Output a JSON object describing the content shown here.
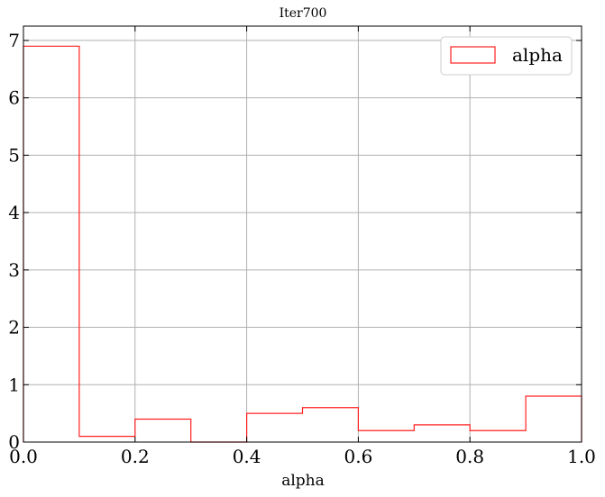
{
  "chart_data": {
    "type": "histogram",
    "title": "Iter700",
    "xlabel": "alpha",
    "ylabel": "",
    "xlim": [
      0.0,
      1.0
    ],
    "ylim": [
      0,
      7.25
    ],
    "xticks": [
      "0.0",
      "0.2",
      "0.4",
      "0.6",
      "0.8",
      "1.0"
    ],
    "yticks": [
      "0",
      "1",
      "2",
      "3",
      "4",
      "5",
      "6",
      "7"
    ],
    "grid": true,
    "legend_position": "top-right",
    "bin_edges": [
      0.0,
      0.1,
      0.2,
      0.3,
      0.4,
      0.5,
      0.6,
      0.7,
      0.8,
      0.9,
      1.0
    ],
    "series": [
      {
        "name": "alpha",
        "color": "#ff2020",
        "values": [
          6.9,
          0.1,
          0.4,
          0.0,
          0.5,
          0.6,
          0.2,
          0.3,
          0.2,
          0.8
        ]
      }
    ]
  }
}
